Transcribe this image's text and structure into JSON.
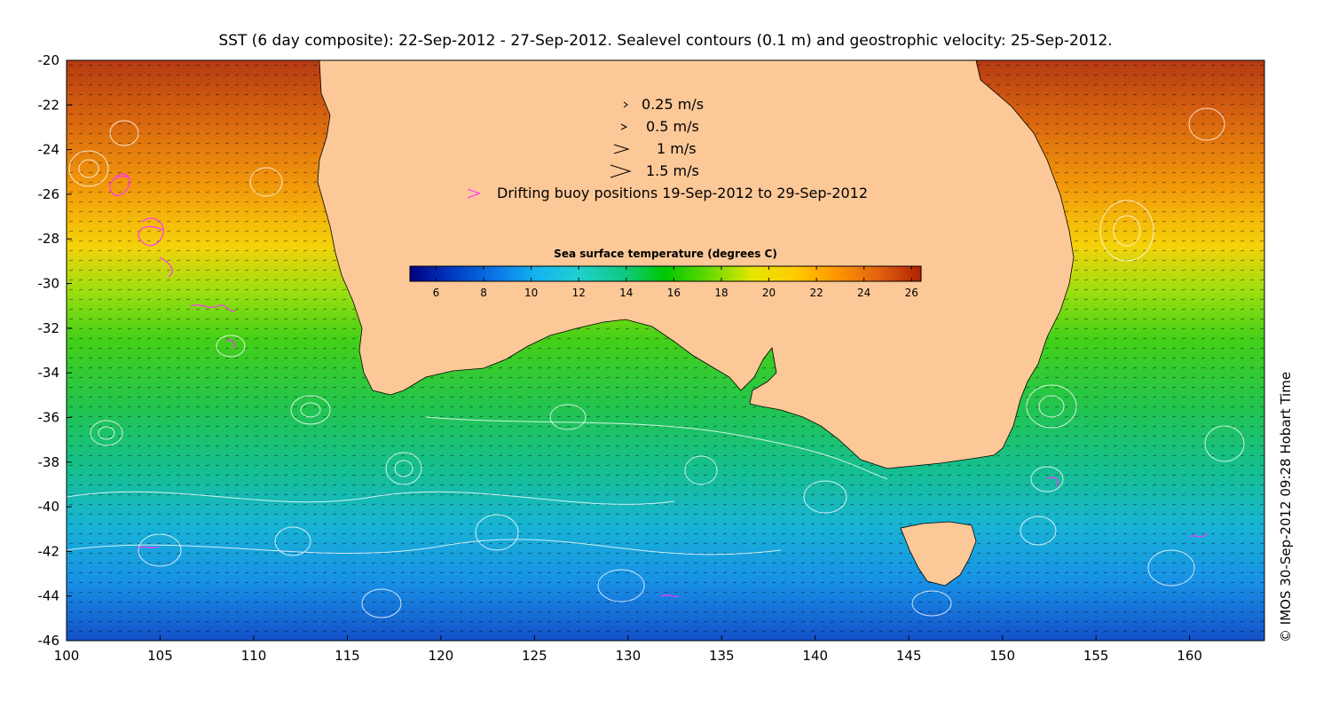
{
  "title": "SST (6 day composite): 22-Sep-2012 - 27-Sep-2012. Sealevel contours (0.1 m) and geostrophic velocity: 25-Sep-2012.",
  "credit": "© IMOS 30-Sep-2012 09:28 Hobart Time",
  "map": {
    "lon_range": [
      100,
      164
    ],
    "lat_range": [
      -46,
      -20
    ],
    "x_ticks": [
      "100",
      "105",
      "110",
      "115",
      "120",
      "125",
      "130",
      "135",
      "140",
      "145",
      "150",
      "155",
      "160"
    ],
    "y_ticks": [
      "-20",
      "-22",
      "-24",
      "-26",
      "-28",
      "-30",
      "-32",
      "-34",
      "-36",
      "-38",
      "-40",
      "-42",
      "-44",
      "-46"
    ],
    "land_color": "#fdc898",
    "contour_color": "#ffffff",
    "arrow_color": "#000000",
    "buoy_color": "#ff33ff"
  },
  "legend": {
    "items": [
      {
        "label": "0.25 m/s",
        "icon": "arrow-small-icon"
      },
      {
        "label": "0.5 m/s",
        "icon": "arrow-medium-icon"
      },
      {
        "label": "1 m/s",
        "icon": "arrow-large-icon"
      },
      {
        "label": "1.5 m/s",
        "icon": "arrow-xlarge-icon"
      },
      {
        "label": "Drifting buoy positions 19-Sep-2012 to 29-Sep-2012",
        "icon": "buoy-marker-icon"
      }
    ]
  },
  "colorbar": {
    "title": "Sea surface temperature (degrees C)",
    "range": [
      4.9,
      26.4
    ],
    "ticks": [
      "6",
      "8",
      "10",
      "12",
      "14",
      "16",
      "18",
      "20",
      "22",
      "24",
      "26"
    ],
    "colors": [
      "#000080",
      "#0038c0",
      "#0a78e6",
      "#14b4f0",
      "#20d0d0",
      "#10c880",
      "#00c800",
      "#60d800",
      "#e6e600",
      "#ffcc00",
      "#ff9900",
      "#e06010",
      "#b02000"
    ]
  }
}
